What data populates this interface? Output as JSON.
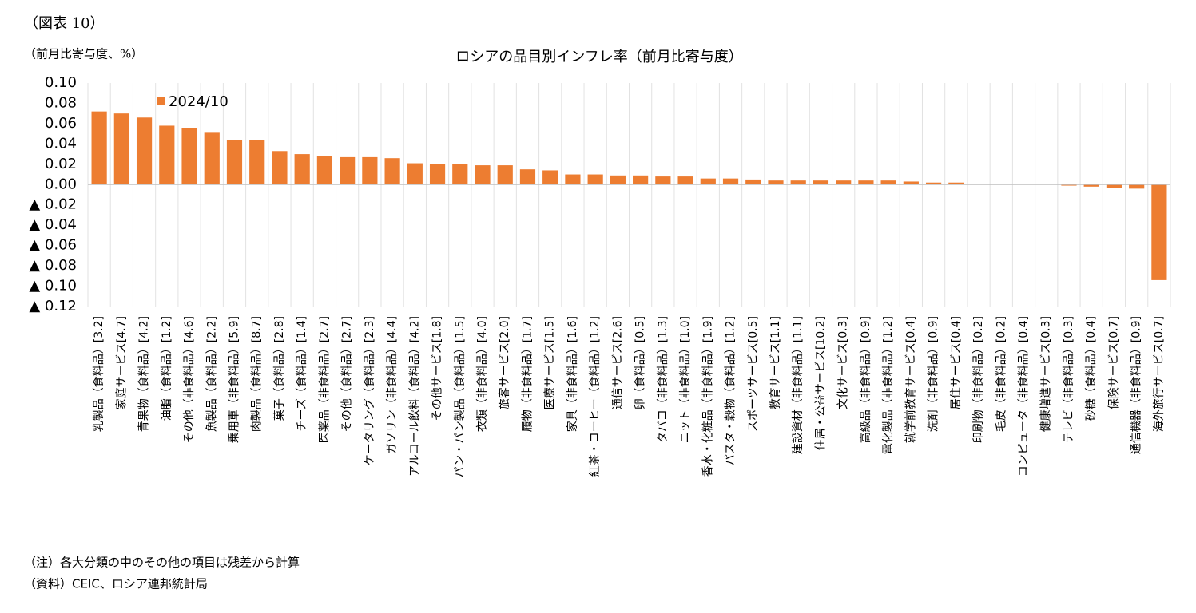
{
  "figure_label": "（図表 10）",
  "chart_data": {
    "type": "bar",
    "title": "ロシアの品目別インフレ率（前月比寄与度）",
    "ylabel": "（前月比寄与度、%）",
    "categories": [
      "乳製品（食料品）[3.2]",
      "家庭サービス[4.7]",
      "青果物（食料品）[4.2]",
      "油脂（食料品）[1.2]",
      "その他（非食料品）[4.6]",
      "魚製品（食料品）[2.2]",
      "乗用車（非食料品）[5.9]",
      "肉製品（食料品）[8.7]",
      "菓子（食料品）[2.8]",
      "チーズ（食料品）[1.4]",
      "医薬品（非食料品）[2.7]",
      "その他（食料品）[2.7]",
      "ケータリング（食料品）[2.3]",
      "ガソリン（非食料品）[4.4]",
      "アルコール飲料（食料品）[4.2]",
      "その他サービス[1.8]",
      "パン・パン製品（食料品）[1.5]",
      "衣類（非食料品）[4.0]",
      "旅客サービス[2.0]",
      "履物（非食料品）[1.7]",
      "医療サービス[1.5]",
      "家具（非食料品）[1.6]",
      "紅茶・コーヒー（食料品）[1.2]",
      "通信サービス[2.6]",
      "卵（食料品）[0.5]",
      "タバコ（非食料品）[1.3]",
      "ニット（非食料品）[1.0]",
      "香水・化粧品（非食料品）[1.9]",
      "パスタ・穀物（食料品）[1.2]",
      "スポーツサービス[0.5]",
      "教育サービス[1.1]",
      "建設資材（非食料品）[1.1]",
      "住居・公益サービス[10.2]",
      "文化サービス[0.3]",
      "高級品（非食料品）[0.9]",
      "電化製品（非食料品）[1.2]",
      "就学前教育サービス[0.4]",
      "洗剤（非食料品）[0.9]",
      "居住サービス[0.4]",
      "印刷物（非食料品）[0.2]",
      "毛皮（非食料品）[0.2]",
      "コンピュータ（非食料品）[0.4]",
      "健康増進サービス[0.3]",
      "テレビ（非食料品）[0.3]",
      "砂糖（食料品）[0.4]",
      "保険サービス[0.7]",
      "通信機器（非食料品）[0.9]",
      "海外旅行サービス[0.7]"
    ],
    "series": [
      {
        "name": "2024/10",
        "color": "#ED7D31",
        "values": [
          0.072,
          0.07,
          0.066,
          0.058,
          0.056,
          0.051,
          0.044,
          0.044,
          0.033,
          0.03,
          0.028,
          0.027,
          0.027,
          0.026,
          0.021,
          0.02,
          0.02,
          0.019,
          0.019,
          0.015,
          0.014,
          0.01,
          0.01,
          0.009,
          0.009,
          0.008,
          0.008,
          0.006,
          0.006,
          0.005,
          0.004,
          0.004,
          0.004,
          0.004,
          0.004,
          0.004,
          0.003,
          0.002,
          0.002,
          0.001,
          0.001,
          0.001,
          0.001,
          -0.001,
          -0.002,
          -0.003,
          -0.004,
          -0.094
        ]
      }
    ],
    "ylim": [
      -0.12,
      0.1
    ],
    "yticks": [
      {
        "value": 0.1,
        "label": "0.10"
      },
      {
        "value": 0.08,
        "label": "0.08"
      },
      {
        "value": 0.06,
        "label": "0.06"
      },
      {
        "value": 0.04,
        "label": "0.04"
      },
      {
        "value": 0.02,
        "label": "0.02"
      },
      {
        "value": 0,
        "label": "0.00"
      },
      {
        "value": -0.02,
        "label": "▲ 0.02"
      },
      {
        "value": -0.04,
        "label": "▲ 0.04"
      },
      {
        "value": -0.06,
        "label": "▲ 0.06"
      },
      {
        "value": -0.08,
        "label": "▲ 0.08"
      },
      {
        "value": -0.1,
        "label": "▲ 0.10"
      },
      {
        "value": -0.12,
        "label": "▲ 0.12"
      }
    ],
    "grid": false,
    "legend": "top-left"
  },
  "notes": [
    "（注）各大分類の中のその他の項目は残差から計算",
    "（資料）CEIC、ロシア連邦統計局"
  ]
}
